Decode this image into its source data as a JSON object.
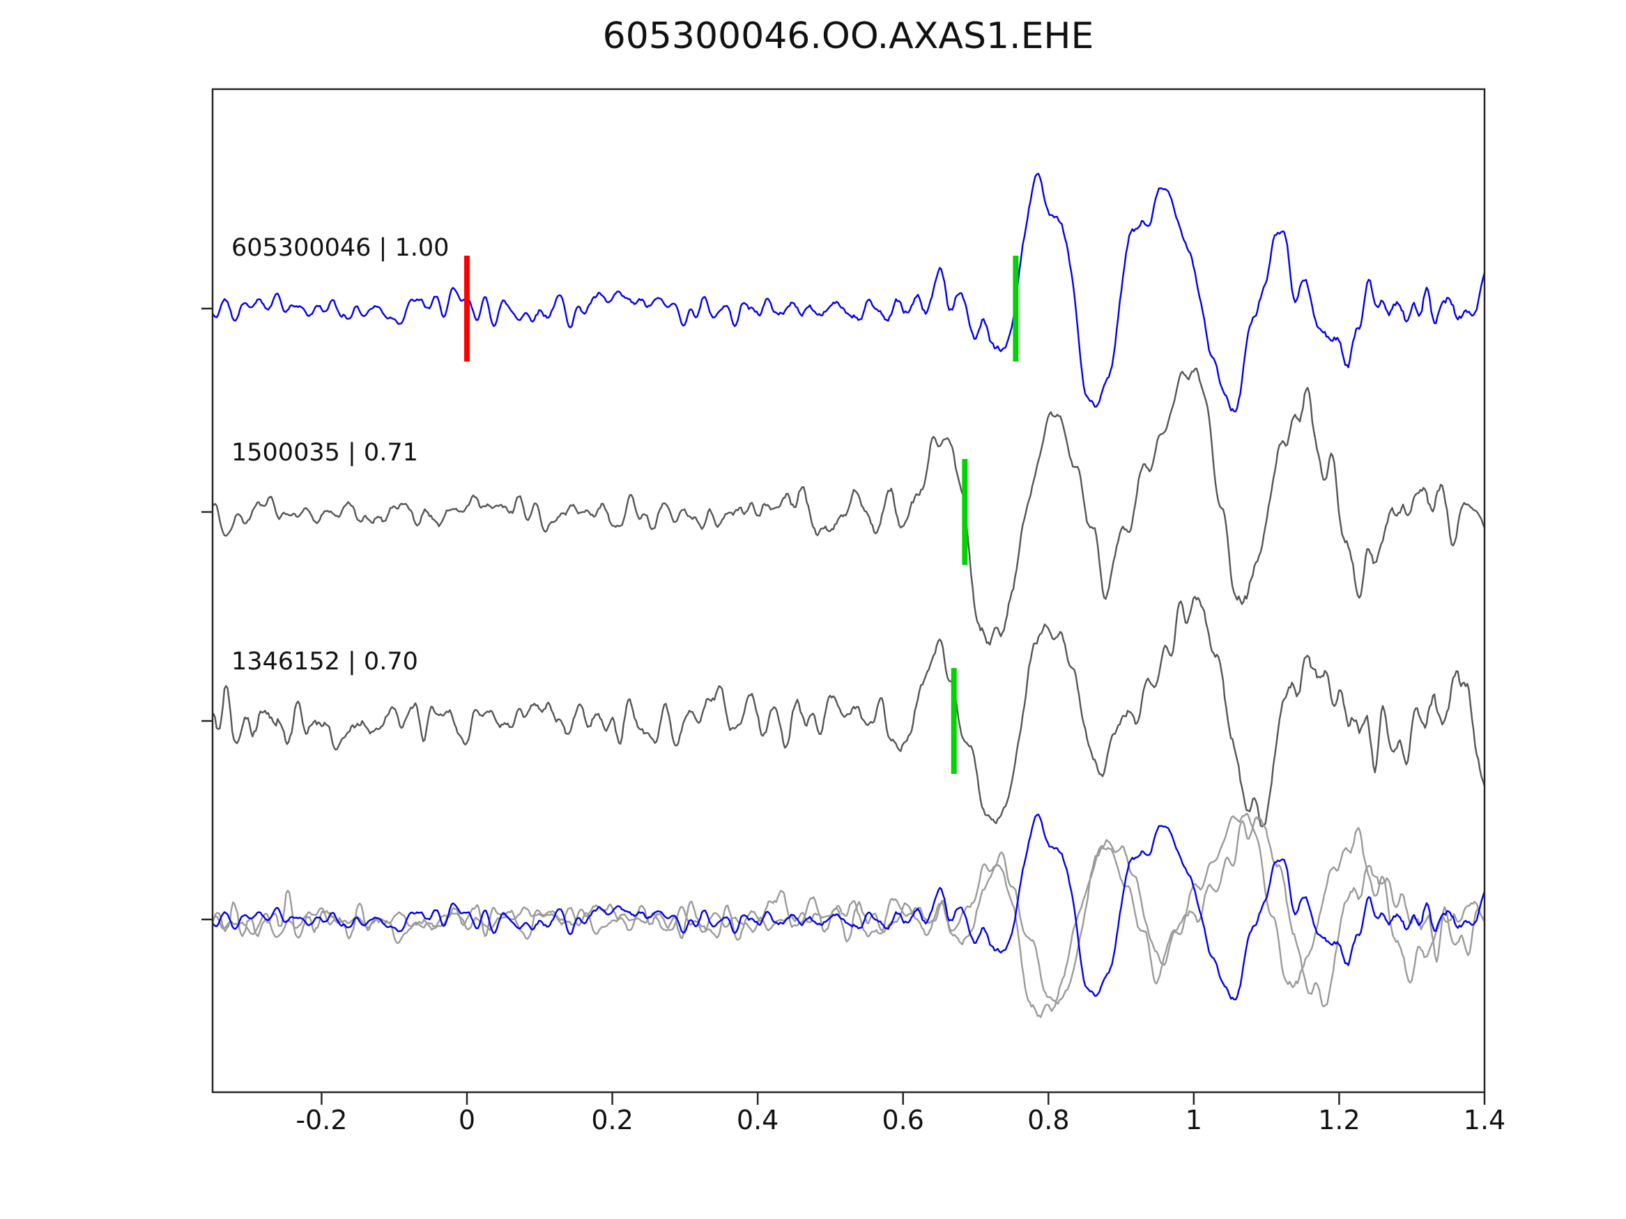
{
  "title": "605300046.OO.AXAS1.EHE",
  "chart_data": {
    "type": "line",
    "title": "605300046.OO.AXAS1.EHE",
    "xlabel": "",
    "ylabel": "",
    "xlim": [
      -0.35,
      1.4
    ],
    "grid": false,
    "legend": "none",
    "x_ticks": [
      -0.2,
      0,
      0.2,
      0.4,
      0.6,
      0.8,
      1,
      1.2,
      1.4
    ],
    "x_tick_labels": [
      "-0.2",
      "0",
      "0.2",
      "0.4",
      "0.6",
      "0.8",
      "1",
      "1.2",
      "1.4"
    ],
    "axis_color": "#262626",
    "background": "#ffffff",
    "pick_colors": {
      "template_pick": "#ff0000",
      "detection_pick": "#00d400"
    },
    "traces": [
      {
        "id": "605300046",
        "cc": "1.00",
        "label": "605300046 | 1.00",
        "color": "#0000ee",
        "markers": [
          {
            "x": 0.0,
            "color": "#ff0000"
          },
          {
            "x": 0.755,
            "color": "#00d400"
          }
        ],
        "seed": 42,
        "envelope": [
          [
            -0.35,
            0.22
          ],
          [
            0.4,
            0.24
          ],
          [
            0.6,
            0.3
          ],
          [
            0.7,
            0.35
          ],
          [
            0.78,
            0.25
          ],
          [
            0.9,
            0.3
          ],
          [
            1.1,
            0.4
          ],
          [
            1.25,
            0.42
          ],
          [
            1.4,
            0.38
          ]
        ],
        "events": [
          {
            "x": 0.74,
            "amp": -0.5,
            "w": 0.03
          },
          {
            "x": 0.785,
            "amp": 1.05,
            "w": 0.032
          },
          {
            "x": 0.825,
            "amp": 0.55,
            "w": 0.02
          },
          {
            "x": 0.865,
            "amp": -0.9,
            "w": 0.035
          },
          {
            "x": 0.915,
            "amp": 0.5,
            "w": 0.022
          },
          {
            "x": 0.97,
            "amp": 0.9,
            "w": 0.045
          },
          {
            "x": 1.045,
            "amp": -0.85,
            "w": 0.035
          },
          {
            "x": 1.12,
            "amp": 0.55,
            "w": 0.028
          },
          {
            "x": 1.2,
            "amp": -0.3,
            "w": 0.025
          }
        ]
      },
      {
        "id": "1500035",
        "cc": "0.71",
        "label": "1500035 | 0.71",
        "color": "#555555",
        "markers": [
          {
            "x": 0.685,
            "color": "#00d400"
          }
        ],
        "seed": 1337,
        "envelope": [
          [
            -0.35,
            0.18
          ],
          [
            0.3,
            0.2
          ],
          [
            0.55,
            0.25
          ],
          [
            0.65,
            0.3
          ],
          [
            0.75,
            0.25
          ],
          [
            0.95,
            0.3
          ],
          [
            1.1,
            0.38
          ],
          [
            1.3,
            0.42
          ],
          [
            1.4,
            0.35
          ]
        ],
        "events": [
          {
            "x": 0.655,
            "amp": 0.6,
            "w": 0.028
          },
          {
            "x": 0.705,
            "amp": -0.35,
            "w": 0.02
          },
          {
            "x": 0.735,
            "amp": -1.0,
            "w": 0.038
          },
          {
            "x": 0.8,
            "amp": 0.8,
            "w": 0.045
          },
          {
            "x": 0.875,
            "amp": -0.45,
            "w": 0.03
          },
          {
            "x": 0.93,
            "amp": 0.3,
            "w": 0.025
          },
          {
            "x": 1.0,
            "amp": 0.95,
            "w": 0.042
          },
          {
            "x": 1.065,
            "amp": -0.65,
            "w": 0.032
          },
          {
            "x": 1.15,
            "amp": 0.6,
            "w": 0.04
          },
          {
            "x": 1.23,
            "amp": -0.35,
            "w": 0.03
          }
        ]
      },
      {
        "id": "1346152",
        "cc": "0.70",
        "label": "1346152 | 0.70",
        "color": "#555555",
        "markers": [
          {
            "x": 0.67,
            "color": "#00d400"
          }
        ],
        "seed": 2024,
        "envelope": [
          [
            -0.35,
            0.6
          ],
          [
            -0.25,
            0.45
          ],
          [
            -0.15,
            0.3
          ],
          [
            0.1,
            0.3
          ],
          [
            0.45,
            0.32
          ],
          [
            0.6,
            0.35
          ],
          [
            0.72,
            0.3
          ],
          [
            0.95,
            0.32
          ],
          [
            1.15,
            0.5
          ],
          [
            1.3,
            0.62
          ],
          [
            1.4,
            0.55
          ]
        ],
        "events": [
          {
            "x": 0.655,
            "amp": 0.65,
            "w": 0.026
          },
          {
            "x": 0.73,
            "amp": -0.85,
            "w": 0.036
          },
          {
            "x": 0.8,
            "amp": 0.85,
            "w": 0.04
          },
          {
            "x": 0.87,
            "amp": -0.4,
            "w": 0.028
          },
          {
            "x": 1.0,
            "amp": 0.95,
            "w": 0.05
          },
          {
            "x": 1.08,
            "amp": -0.75,
            "w": 0.035
          },
          {
            "x": 1.16,
            "amp": 0.5,
            "w": 0.03
          }
        ]
      }
    ],
    "overlay": {
      "description": "all traces superimposed, aligned on detection",
      "secondary_color": "#9a9a9a",
      "primary_color": "#0000ee",
      "components": [
        {
          "trace": 1,
          "xshift": 0.07
        },
        {
          "trace": 2,
          "xshift": 0.085
        },
        {
          "trace": 0,
          "xshift": 0.0
        }
      ]
    }
  }
}
